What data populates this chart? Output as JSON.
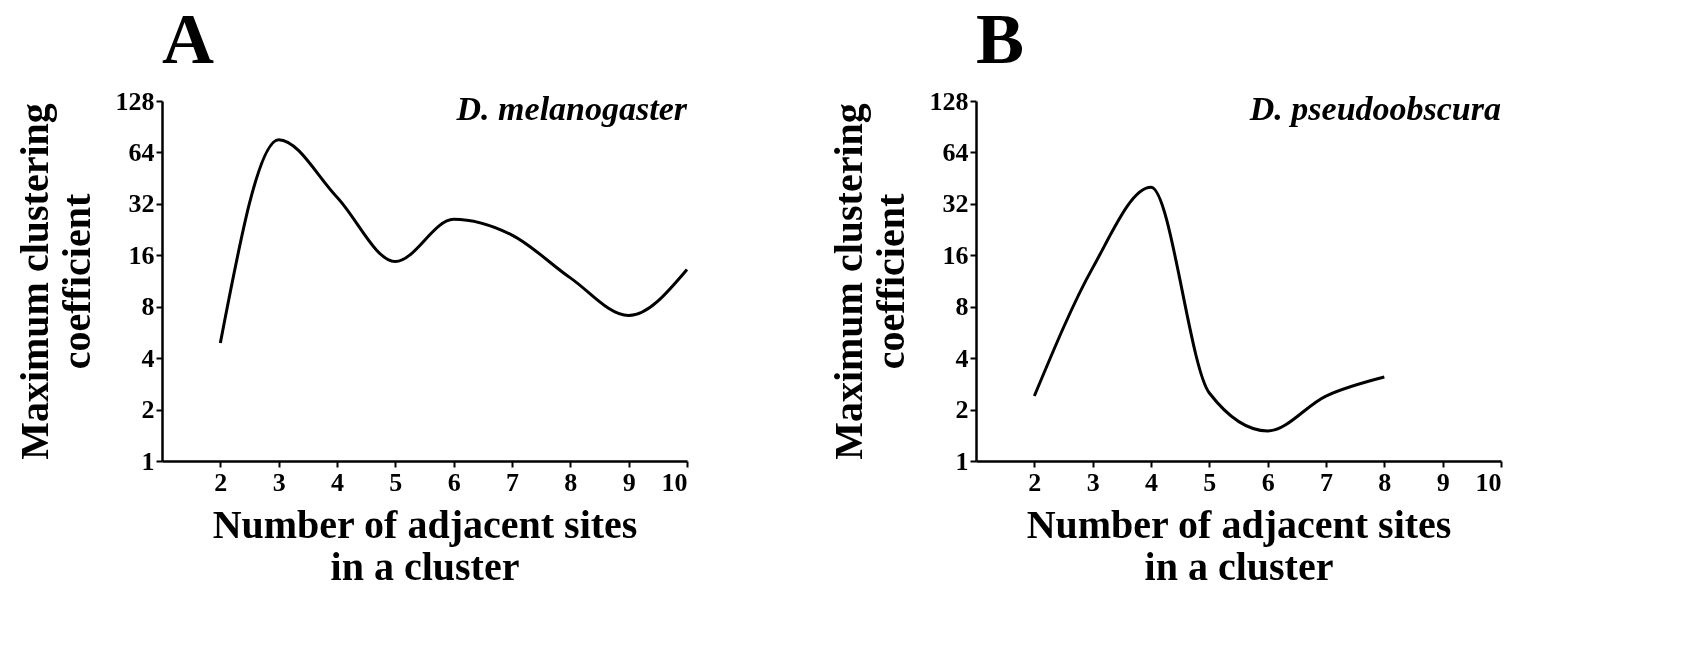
{
  "chart_data": [
    {
      "type": "line",
      "title": "A",
      "annotations": [
        "D. melanogaster"
      ],
      "xlabel": [
        "Number of adjacent sites",
        "in a cluster"
      ],
      "ylabel": [
        "Maximum clustering",
        "coefficient"
      ],
      "log": "y",
      "grid": false,
      "marker": "none",
      "line_style": "solid",
      "x": [
        2,
        3,
        4,
        5,
        6,
        7,
        8,
        9,
        10
      ],
      "xlim": [
        1,
        10
      ],
      "xticks": [
        2,
        3,
        4,
        5,
        6,
        7,
        8,
        9,
        10
      ],
      "ylim": [
        1,
        128
      ],
      "yticks": [
        1,
        2,
        4,
        8,
        16,
        32,
        64,
        128
      ],
      "series": [
        {
          "color": "#000000",
          "values": [
            4.9,
            76,
            35,
            14.7,
            26,
            21,
            11.8,
            7.1,
            13.2
          ]
        }
      ]
    },
    {
      "type": "line",
      "title": "B",
      "annotations": [
        "D. pseudoobscura"
      ],
      "xlabel": [
        "Number of adjacent sites",
        "in a cluster"
      ],
      "ylabel": [
        "Maximum clustering",
        "coefficient"
      ],
      "log": "y",
      "grid": false,
      "marker": "none",
      "line_style": "solid",
      "x": [
        2,
        3,
        4,
        5,
        6,
        7,
        8
      ],
      "xlim": [
        1,
        10
      ],
      "xticks": [
        2,
        3,
        4,
        5,
        6,
        7,
        8,
        9,
        10
      ],
      "ylim": [
        1,
        128
      ],
      "yticks": [
        1,
        2,
        4,
        8,
        16,
        32,
        64,
        128
      ],
      "series": [
        {
          "color": "#000000",
          "values": [
            2.4,
            13.5,
            40,
            2.5,
            1.5,
            2.4,
            3.1
          ]
        }
      ]
    }
  ]
}
